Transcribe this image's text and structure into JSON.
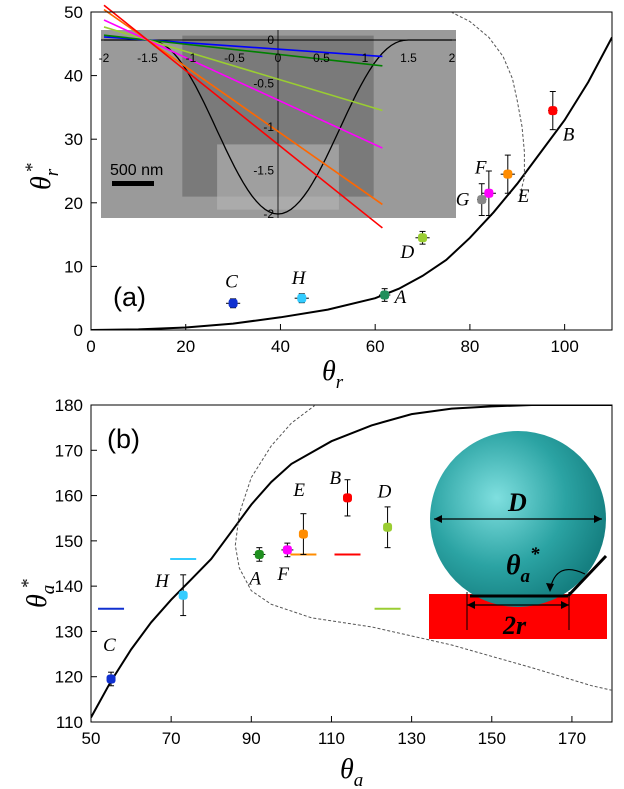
{
  "chart_data": [
    {
      "type": "scatter",
      "panel_label": "(a)",
      "xlabel": "θ",
      "xlabel_sub": "r",
      "ylabel": "θ",
      "ylabel_sub": "r",
      "ylabel_sup": "*",
      "xlim": [
        0,
        110
      ],
      "ylim": [
        0,
        50
      ],
      "xticks": [
        0,
        20,
        40,
        60,
        80,
        100
      ],
      "yticks": [
        0,
        10,
        20,
        30,
        40,
        50
      ],
      "points": [
        {
          "label": "A",
          "x": 62,
          "y": 5.5,
          "xerr": 1.2,
          "yerr": 1.0,
          "color": "#1f8f5a"
        },
        {
          "label": "B",
          "x": 97.5,
          "y": 34.5,
          "xerr": 1.0,
          "yerr": 3.0,
          "color": "#ff0000"
        },
        {
          "label": "C",
          "x": 30,
          "y": 4.2,
          "xerr": 1.5,
          "yerr": 0.7,
          "color": "#1030d0"
        },
        {
          "label": "D",
          "x": 70,
          "y": 14.5,
          "xerr": 1.5,
          "yerr": 1.0,
          "color": "#9acd32"
        },
        {
          "label": "E",
          "x": 88,
          "y": 24.5,
          "xerr": 1.5,
          "yerr": 3.0,
          "color": "#ff8c00"
        },
        {
          "label": "F",
          "x": 84,
          "y": 21.5,
          "xerr": 1.5,
          "yerr": 3.5,
          "color": "#ff00ff"
        },
        {
          "label": "G",
          "x": 82.5,
          "y": 20.5,
          "xerr": 1.0,
          "yerr": 2.5,
          "color": "#888888"
        },
        {
          "label": "H",
          "x": 44.5,
          "y": 5.0,
          "xerr": 1.5,
          "yerr": 0.7,
          "color": "#33ccff"
        }
      ],
      "solid_curve": [
        [
          0,
          0
        ],
        [
          10,
          0.1
        ],
        [
          20,
          0.4
        ],
        [
          30,
          1.0
        ],
        [
          40,
          2.0
        ],
        [
          50,
          3.2
        ],
        [
          60,
          5.0
        ],
        [
          65,
          6.5
        ],
        [
          70,
          8.5
        ],
        [
          75,
          11
        ],
        [
          80,
          14.5
        ],
        [
          85,
          18.5
        ],
        [
          90,
          23
        ],
        [
          95,
          28
        ],
        [
          100,
          33
        ],
        [
          105,
          39
        ],
        [
          110,
          46
        ]
      ],
      "dashed_curve": [
        [
          76,
          50
        ],
        [
          80,
          48.5
        ],
        [
          84,
          46
        ],
        [
          87,
          43
        ],
        [
          89,
          39.5
        ],
        [
          90,
          36
        ],
        [
          91,
          32
        ],
        [
          91.5,
          28
        ],
        [
          91.5,
          24
        ],
        [
          90.5,
          21
        ]
      ],
      "inset": {
        "scale_label": "500 nm",
        "xticks": [
          "-2",
          "-1.5",
          "-1",
          "-0.5",
          "0",
          "0.5",
          "1",
          "1.5",
          "2"
        ],
        "yticks": [
          "0",
          "-0.5",
          "-1",
          "-1.5",
          "-2"
        ],
        "lines": [
          {
            "color": "#0000ff",
            "slope": -0.07
          },
          {
            "color": "#008000",
            "slope": -0.11
          },
          {
            "color": "#9acd32",
            "slope": -0.3
          },
          {
            "color": "#ff00ff",
            "slope": -0.46
          },
          {
            "color": "#ff6600",
            "slope": -0.7
          },
          {
            "color": "#ff0000",
            "slope": -0.8
          }
        ]
      }
    },
    {
      "type": "scatter",
      "panel_label": "(b)",
      "xlabel": "θ",
      "xlabel_sub": "a",
      "ylabel": "θ",
      "ylabel_sub": "a",
      "ylabel_sup": "*",
      "xlim": [
        50,
        180
      ],
      "ylim": [
        110,
        180
      ],
      "xticks": [
        50,
        70,
        90,
        110,
        130,
        150,
        170
      ],
      "yticks": [
        110,
        120,
        130,
        140,
        150,
        160,
        170,
        180
      ],
      "points": [
        {
          "label": "A",
          "x": 92,
          "y": 147,
          "xerr": 1.5,
          "yerr": 1.5,
          "color": "#1f8f1f"
        },
        {
          "label": "B",
          "x": 114,
          "y": 159.5,
          "xerr": 1.0,
          "yerr": 4.0,
          "color": "#ff0000"
        },
        {
          "label": "C",
          "x": 55,
          "y": 119.5,
          "xerr": 1.0,
          "yerr": 1.5,
          "color": "#1030d0"
        },
        {
          "label": "D",
          "x": 124,
          "y": 153,
          "xerr": 1.0,
          "yerr": 4.5,
          "color": "#9acd32"
        },
        {
          "label": "E",
          "x": 103,
          "y": 151.5,
          "xerr": 0.8,
          "yerr": 4.5,
          "color": "#ff8c00"
        },
        {
          "label": "F",
          "x": 99,
          "y": 148,
          "xerr": 1.5,
          "yerr": 1.5,
          "color": "#ff00ff"
        },
        {
          "label": "H",
          "x": 73,
          "y": 138,
          "xerr": 1.0,
          "yerr": 4.5,
          "color": "#33ccff"
        }
      ],
      "dashes": [
        {
          "x": 55,
          "y": 135,
          "color": "#1030d0"
        },
        {
          "x": 73,
          "y": 146,
          "color": "#33ccff"
        },
        {
          "x": 103,
          "y": 147,
          "color": "#ff8c00"
        },
        {
          "x": 114,
          "y": 147,
          "color": "#ff0000"
        },
        {
          "x": 124,
          "y": 135,
          "color": "#9acd32"
        }
      ],
      "solid_curve": [
        [
          50,
          111
        ],
        [
          55,
          119
        ],
        [
          60,
          126
        ],
        [
          65,
          132
        ],
        [
          70,
          137
        ],
        [
          75,
          141.5
        ],
        [
          80,
          146
        ],
        [
          85,
          152
        ],
        [
          90,
          158
        ],
        [
          95,
          163
        ],
        [
          100,
          167
        ],
        [
          110,
          172
        ],
        [
          120,
          175.5
        ],
        [
          130,
          178
        ],
        [
          140,
          179.2
        ],
        [
          150,
          179.7
        ],
        [
          160,
          180
        ],
        [
          180,
          180
        ]
      ],
      "dashed_curve": [
        [
          106,
          180
        ],
        [
          100,
          176
        ],
        [
          95,
          171
        ],
        [
          90,
          164
        ],
        [
          87,
          156
        ],
        [
          86,
          149
        ],
        [
          87,
          144
        ],
        [
          90,
          139
        ],
        [
          95,
          136
        ],
        [
          105,
          133
        ],
        [
          120,
          131
        ],
        [
          140,
          127
        ],
        [
          160,
          122
        ],
        [
          175,
          118
        ],
        [
          180,
          117
        ]
      ],
      "inset": {
        "diameter_label": "D",
        "base_label": "2r",
        "angle_label": "θ",
        "angle_sub": "a",
        "angle_sup": "*"
      }
    }
  ]
}
